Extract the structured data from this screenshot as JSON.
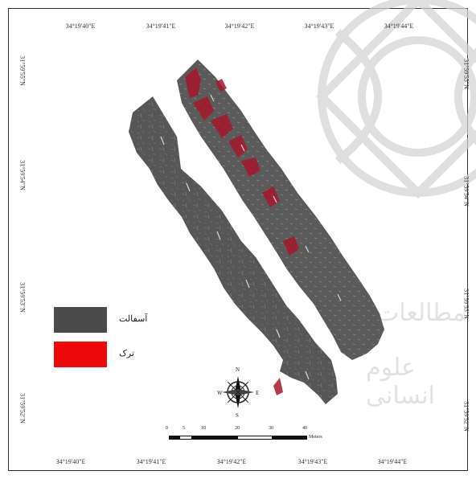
{
  "axes": {
    "top_ticks": [
      "34°19'40\"E",
      "34°19'41\"E",
      "34°19'42\"E",
      "34°19'43\"E",
      "34°19'44\"E"
    ],
    "bottom_ticks": [
      "34°19'40\"E",
      "34°19'41\"E",
      "34°19'42\"E",
      "34°19'43\"E",
      "34°19'44\"E"
    ],
    "left_ticks": [
      "31°59'55\"N",
      "31°59'54\"N",
      "31°59'53\"N",
      "31°59'52\"N"
    ],
    "right_ticks": [
      "31°59'55\"N",
      "31°59'54\"N",
      "31°59'53\"N",
      "31°59'52\"N"
    ]
  },
  "legend": {
    "items": [
      {
        "label": "آسفالت",
        "color": "#4a4a4a"
      },
      {
        "label": "ترک",
        "color": "#ee0a0a"
      }
    ]
  },
  "scale_bar": {
    "labels": [
      "0",
      "5",
      "10",
      "20",
      "30",
      "40"
    ],
    "unit": "Meters"
  },
  "north_arrow": {
    "n": "N",
    "s": "S",
    "e": "E",
    "w": "W"
  },
  "colors": {
    "asphalt": "#555555",
    "crack": "#b0182a",
    "watermark": "#cfcfcf"
  }
}
